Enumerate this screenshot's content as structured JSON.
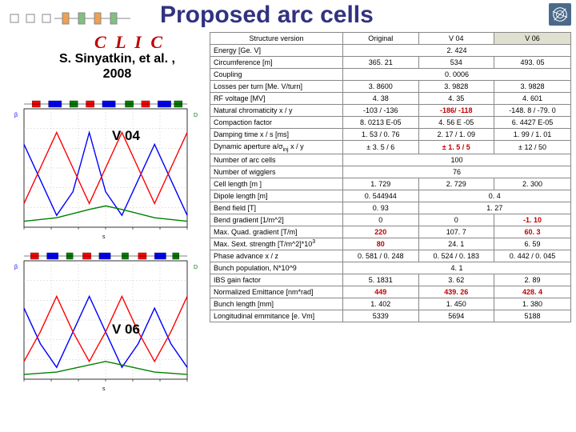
{
  "title": "Proposed arc cells",
  "clic": "C L I C",
  "author_line1": "S. Sinyatkin, et al. ,",
  "author_line2": "2008",
  "chart_labels": {
    "v04": "V 04",
    "v06": "V 06"
  },
  "table": {
    "headers": [
      "Structure version",
      "Original",
      "V 04",
      "V 06"
    ],
    "rows": [
      {
        "param": "Energy [Ge. V]",
        "vals": [
          "2. 424"
        ],
        "span": 3
      },
      {
        "param": "Circumference [m]",
        "vals": [
          "365. 21",
          "534",
          "493. 05"
        ]
      },
      {
        "param": "Coupling",
        "vals": [
          "0. 0006"
        ],
        "span": 3
      },
      {
        "param": "Losses per turn [Me. V/turn]",
        "vals": [
          "3. 8600",
          "3. 9828",
          "3. 9828"
        ]
      },
      {
        "param": "RF voltage [MV]",
        "vals": [
          "4. 38",
          "4. 35",
          "4. 601"
        ]
      },
      {
        "param": "Natural chromaticity x / y",
        "vals": [
          "-103 / -136",
          "-186/ -118",
          "-148. 8 / -79. 0"
        ],
        "red": [
          1
        ]
      },
      {
        "param": "Compaction factor",
        "vals": [
          "8. 0213 E-05",
          "4. 56 E -05",
          "6. 4427 E-05"
        ]
      },
      {
        "param": "Damping time x / s [ms]",
        "vals": [
          "1. 53 / 0. 76",
          "2. 17 / 1. 09",
          "1. 99 / 1. 01"
        ]
      },
      {
        "param": "Dynamic aperture a/σ_inj x / y",
        "vals": [
          "± 3. 5 / 6",
          "± 1. 5  / 5",
          "± 12 / 50"
        ],
        "red": [
          1
        ]
      },
      {
        "param": "Number of arc cells",
        "vals": [
          "100"
        ],
        "span": 3
      },
      {
        "param": "Number of wigglers",
        "vals": [
          "76"
        ],
        "span": 3
      },
      {
        "param": "Cell length [m ]",
        "vals": [
          "1. 729",
          "2. 729",
          "2. 300"
        ]
      },
      {
        "param": "Dipole length [m]",
        "vals": [
          "0. 544944",
          "0. 4"
        ],
        "span2": true
      },
      {
        "param": "Bend field [T]",
        "vals": [
          "0. 93",
          "1. 27"
        ],
        "span2": true
      },
      {
        "param": "Bend gradient [1/m^2]",
        "vals": [
          "0",
          "0",
          "-1. 10"
        ],
        "red": [
          2
        ]
      },
      {
        "param": "Max. Quad. gradient  [T/m]",
        "vals": [
          "220",
          "107. 7",
          "60. 3"
        ],
        "red": [
          0,
          2
        ]
      },
      {
        "param": "Max. Sext.  strength [T/m^2]*10³",
        "vals": [
          "80",
          "24. 1",
          "6. 59"
        ],
        "red": [
          0
        ]
      },
      {
        "param": "Phase advance x / z",
        "vals": [
          "0. 581 / 0. 248",
          "0. 524 / 0. 183",
          "0. 442 / 0. 045"
        ]
      },
      {
        "param": "Bunch population, N*10^9",
        "vals": [
          "4. 1"
        ],
        "span": 3
      },
      {
        "param": "IBS gain factor",
        "vals": [
          "5. 1831",
          "3. 62",
          "2. 89"
        ]
      },
      {
        "param": "Normalized Emittance [nm*rad]",
        "vals": [
          "449",
          "439. 26",
          "428. 4"
        ],
        "red": [
          0,
          1,
          2
        ]
      },
      {
        "param": "Bunch length [mm]",
        "vals": [
          "1. 402",
          "1. 450",
          "1. 380"
        ]
      },
      {
        "param": "Longitudinal emmitance [e. Vm]",
        "vals": [
          "5339",
          "5694",
          "5188"
        ]
      }
    ]
  },
  "charts": {
    "v04": {
      "bg": "#ffffff",
      "grid": "#cccccc",
      "curves": [
        {
          "color": "#0000ff",
          "pts": [
            [
              0,
              0.7
            ],
            [
              0.1,
              0.4
            ],
            [
              0.2,
              0.1
            ],
            [
              0.3,
              0.3
            ],
            [
              0.4,
              0.8
            ],
            [
              0.5,
              0.3
            ],
            [
              0.6,
              0.1
            ],
            [
              0.7,
              0.4
            ],
            [
              0.8,
              0.7
            ],
            [
              0.9,
              0.4
            ],
            [
              1,
              0.1
            ]
          ]
        },
        {
          "color": "#ff0000",
          "pts": [
            [
              0,
              0.2
            ],
            [
              0.1,
              0.5
            ],
            [
              0.2,
              0.8
            ],
            [
              0.3,
              0.5
            ],
            [
              0.4,
              0.2
            ],
            [
              0.5,
              0.5
            ],
            [
              0.6,
              0.8
            ],
            [
              0.7,
              0.5
            ],
            [
              0.8,
              0.2
            ],
            [
              0.9,
              0.5
            ],
            [
              1,
              0.8
            ]
          ]
        },
        {
          "color": "#008000",
          "pts": [
            [
              0,
              0.05
            ],
            [
              0.2,
              0.08
            ],
            [
              0.4,
              0.15
            ],
            [
              0.5,
              0.18
            ],
            [
              0.6,
              0.15
            ],
            [
              0.8,
              0.08
            ],
            [
              1,
              0.05
            ]
          ]
        }
      ],
      "magnets": [
        {
          "x": 0.05,
          "w": 0.05,
          "c": "#ff0000"
        },
        {
          "x": 0.15,
          "w": 0.08,
          "c": "#0000ff"
        },
        {
          "x": 0.28,
          "w": 0.05,
          "c": "#008000"
        },
        {
          "x": 0.38,
          "w": 0.05,
          "c": "#ff0000"
        },
        {
          "x": 0.48,
          "w": 0.08,
          "c": "#0000ff"
        },
        {
          "x": 0.62,
          "w": 0.05,
          "c": "#008000"
        },
        {
          "x": 0.72,
          "w": 0.05,
          "c": "#ff0000"
        },
        {
          "x": 0.82,
          "w": 0.08,
          "c": "#0000ff"
        },
        {
          "x": 0.92,
          "w": 0.05,
          "c": "#008000"
        }
      ]
    },
    "v06": {
      "bg": "#ffffff",
      "grid": "#cccccc",
      "curves": [
        {
          "color": "#0000ff",
          "pts": [
            [
              0,
              0.6
            ],
            [
              0.1,
              0.3
            ],
            [
              0.2,
              0.1
            ],
            [
              0.3,
              0.4
            ],
            [
              0.4,
              0.7
            ],
            [
              0.5,
              0.4
            ],
            [
              0.6,
              0.1
            ],
            [
              0.7,
              0.3
            ],
            [
              0.8,
              0.6
            ],
            [
              0.9,
              0.3
            ],
            [
              1,
              0.1
            ]
          ]
        },
        {
          "color": "#ff0000",
          "pts": [
            [
              0,
              0.15
            ],
            [
              0.1,
              0.4
            ],
            [
              0.2,
              0.7
            ],
            [
              0.3,
              0.4
            ],
            [
              0.4,
              0.15
            ],
            [
              0.5,
              0.4
            ],
            [
              0.6,
              0.7
            ],
            [
              0.7,
              0.4
            ],
            [
              0.8,
              0.15
            ],
            [
              0.9,
              0.4
            ],
            [
              1,
              0.7
            ]
          ]
        },
        {
          "color": "#008000",
          "pts": [
            [
              0,
              0.04
            ],
            [
              0.2,
              0.06
            ],
            [
              0.4,
              0.12
            ],
            [
              0.5,
              0.15
            ],
            [
              0.6,
              0.12
            ],
            [
              0.8,
              0.06
            ],
            [
              1,
              0.04
            ]
          ]
        }
      ],
      "magnets": [
        {
          "x": 0.04,
          "w": 0.05,
          "c": "#ff0000"
        },
        {
          "x": 0.14,
          "w": 0.07,
          "c": "#0000ff"
        },
        {
          "x": 0.26,
          "w": 0.04,
          "c": "#008000"
        },
        {
          "x": 0.36,
          "w": 0.05,
          "c": "#ff0000"
        },
        {
          "x": 0.46,
          "w": 0.07,
          "c": "#0000ff"
        },
        {
          "x": 0.6,
          "w": 0.04,
          "c": "#008000"
        },
        {
          "x": 0.7,
          "w": 0.05,
          "c": "#ff0000"
        },
        {
          "x": 0.8,
          "w": 0.07,
          "c": "#0000ff"
        },
        {
          "x": 0.91,
          "w": 0.04,
          "c": "#008000"
        }
      ]
    }
  }
}
